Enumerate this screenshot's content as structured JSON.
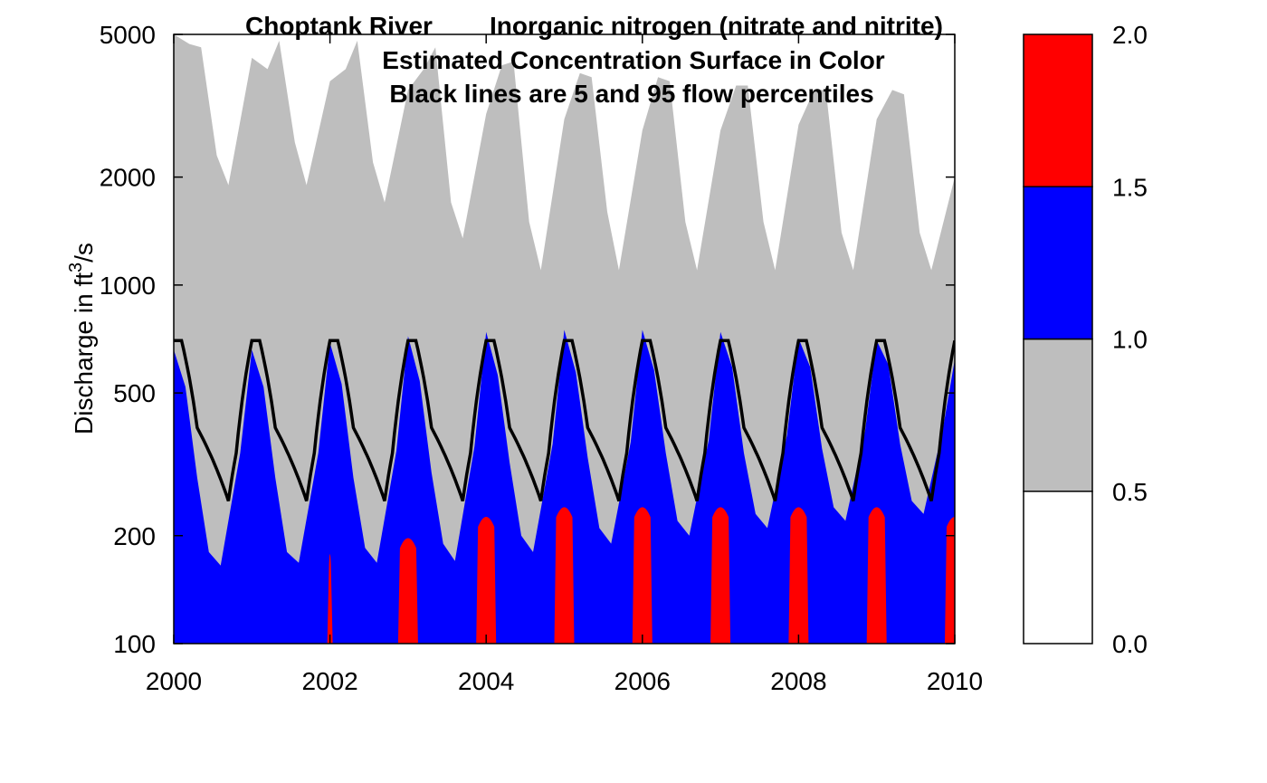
{
  "chart_data": {
    "type": "heatmap",
    "title": {
      "river": "Choptank River",
      "constituent": "Inorganic nitrogen (nitrate and nitrite)",
      "line2": "Estimated Concentration Surface in Color",
      "line3": "Black lines are 5 and 95 flow percentiles"
    },
    "xlabel": "",
    "ylabel": "Discharge in ft",
    "ylabel_sup": "3",
    "ylabel_suffix": "/s",
    "xlim": [
      2000,
      2010
    ],
    "ylim": [
      100,
      5000
    ],
    "y_scale": "log",
    "x_ticks": [
      2000,
      2002,
      2004,
      2006,
      2008,
      2010
    ],
    "x_tick_labels": [
      "2000",
      "2002",
      "2004",
      "2006",
      "2008",
      "2010"
    ],
    "y_ticks": [
      100,
      200,
      500,
      1000,
      2000,
      5000
    ],
    "y_tick_labels": [
      "100",
      "200",
      "500",
      "1000",
      "2000",
      "5000"
    ],
    "colorbar": {
      "levels": [
        0.0,
        0.5,
        1.0,
        1.5,
        2.0
      ],
      "level_labels": [
        "0.0",
        "0.5",
        "1.0",
        "1.5",
        "2.0"
      ],
      "colors": [
        "#ffffff",
        "#bebebe",
        "#0000ff",
        "#ff0000"
      ]
    },
    "series": [
      {
        "role": "boundary-white-gray (concentration 0.5)",
        "x": [
          2000.0,
          2000.2,
          2000.35,
          2000.55,
          2000.7,
          2001.0,
          2001.2,
          2001.35,
          2001.55,
          2001.7,
          2002.0,
          2002.2,
          2002.35,
          2002.55,
          2002.7,
          2003.0,
          2003.2,
          2003.35,
          2003.55,
          2003.7,
          2004.0,
          2004.2,
          2004.35,
          2004.55,
          2004.7,
          2005.0,
          2005.2,
          2005.35,
          2005.55,
          2005.7,
          2006.0,
          2006.2,
          2006.35,
          2006.55,
          2006.7,
          2007.0,
          2007.2,
          2007.35,
          2007.55,
          2007.7,
          2008.0,
          2008.2,
          2008.35,
          2008.55,
          2008.7,
          2009.0,
          2009.2,
          2009.35,
          2009.55,
          2009.7,
          2010.0
        ],
        "y": [
          5000,
          4700,
          4600,
          2300,
          1900,
          4300,
          4000,
          4800,
          2500,
          1900,
          3700,
          4000,
          4800,
          2200,
          1700,
          3500,
          4000,
          4600,
          1700,
          1350,
          3000,
          4100,
          4200,
          1500,
          1100,
          2900,
          3900,
          3800,
          1600,
          1100,
          2700,
          3800,
          3700,
          1500,
          1100,
          2700,
          3600,
          3600,
          1500,
          1100,
          2800,
          3500,
          3500,
          1400,
          1100,
          2900,
          3500,
          3400,
          1400,
          1100,
          2000
        ]
      },
      {
        "role": "boundary-gray-blue (concentration 1.0)",
        "x": [
          2000.0,
          2000.15,
          2000.3,
          2000.45,
          2000.6,
          2000.85,
          2001.0,
          2001.15,
          2001.3,
          2001.45,
          2001.6,
          2001.85,
          2002.0,
          2002.15,
          2002.3,
          2002.45,
          2002.6,
          2002.85,
          2003.0,
          2003.15,
          2003.3,
          2003.45,
          2003.6,
          2003.85,
          2004.0,
          2004.15,
          2004.3,
          2004.45,
          2004.6,
          2004.85,
          2005.0,
          2005.15,
          2005.3,
          2005.45,
          2005.6,
          2005.85,
          2006.0,
          2006.15,
          2006.3,
          2006.45,
          2006.6,
          2006.85,
          2007.0,
          2007.15,
          2007.3,
          2007.45,
          2007.6,
          2007.85,
          2008.0,
          2008.15,
          2008.3,
          2008.45,
          2008.6,
          2008.85,
          2009.0,
          2009.15,
          2009.3,
          2009.45,
          2009.6,
          2009.85,
          2010.0
        ],
        "y": [
          660,
          520,
          290,
          180,
          165,
          340,
          660,
          520,
          290,
          180,
          168,
          340,
          690,
          530,
          290,
          185,
          168,
          345,
          720,
          540,
          300,
          190,
          170,
          355,
          740,
          560,
          320,
          200,
          180,
          360,
          750,
          570,
          330,
          210,
          190,
          365,
          750,
          580,
          340,
          220,
          200,
          370,
          740,
          590,
          340,
          230,
          210,
          380,
          710,
          590,
          350,
          240,
          220,
          390,
          700,
          600,
          360,
          250,
          230,
          400,
          620
        ]
      },
      {
        "role": "red patches (concentration > 1.5)",
        "x": [
          2002.0,
          2003.0,
          2004.0,
          2005.0,
          2006.0,
          2007.0,
          2008.0,
          2009.0,
          2010.0
        ],
        "y_top": [
          185,
          205,
          235,
          250,
          250,
          250,
          250,
          250,
          235
        ]
      },
      {
        "role": "5th flow percentile",
        "x": [
          2000.0,
          2001.0,
          2002.0,
          2003.0,
          2004.0,
          2005.0,
          2006.0,
          2007.0,
          2008.0,
          2009.0,
          2010.0
        ],
        "y": [
          250,
          250,
          250,
          250,
          250,
          250,
          250,
          250,
          250,
          250,
          250
        ]
      },
      {
        "role": "95th flow percentile",
        "x": [
          2000.0,
          2001.0,
          2002.0,
          2003.0,
          2004.0,
          2005.0,
          2006.0,
          2007.0,
          2008.0,
          2009.0,
          2010.0
        ],
        "y": [
          700,
          700,
          700,
          700,
          700,
          700,
          700,
          700,
          700,
          700,
          700
        ]
      }
    ],
    "grid": false,
    "legend": "colorbar-right"
  }
}
